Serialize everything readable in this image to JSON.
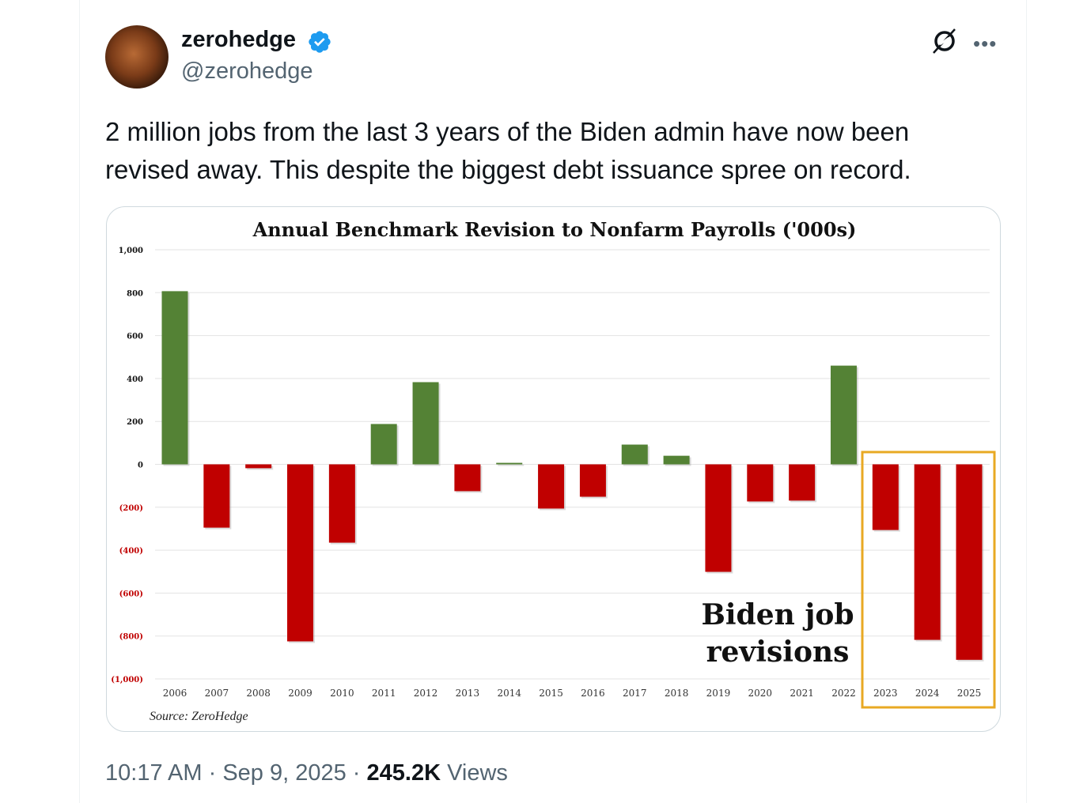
{
  "author": {
    "name": "zerohedge",
    "handle": "@zerohedge",
    "verified": true,
    "avatar_icon": "avatar-image"
  },
  "header_icons": {
    "grok": "grok-icon",
    "more": "more-options-icon"
  },
  "tweet": {
    "text": "2 million jobs from the last 3 years of the Biden admin have now been revised away. This despite the biggest debt issuance spree on record."
  },
  "meta": {
    "time": "10:17 AM",
    "separator": " · ",
    "date": "Sep 9, 2025",
    "views_count": "245.2K",
    "views_label": " Views"
  },
  "chart_data": {
    "type": "bar",
    "title": "Annual Benchmark Revision to Nonfarm Payrolls ('000s)",
    "categories": [
      "2006",
      "2007",
      "2008",
      "2009",
      "2010",
      "2011",
      "2012",
      "2013",
      "2014",
      "2015",
      "2016",
      "2017",
      "2018",
      "2019",
      "2020",
      "2021",
      "2022",
      "2023",
      "2024",
      "2025"
    ],
    "values": [
      807,
      -295,
      -18,
      -825,
      -365,
      188,
      383,
      -125,
      7,
      -206,
      -151,
      92,
      40,
      -501,
      -173,
      -169,
      460,
      -306,
      -818,
      -911
    ],
    "ylim": [
      -1000,
      1000
    ],
    "yticks": [
      "1,000",
      "800",
      "600",
      "400",
      "200",
      "0",
      "(200)",
      "(400)",
      "(600)",
      "(800)",
      "(1,000)"
    ],
    "grid": true,
    "colors": {
      "positive": "#548235",
      "negative": "#c00000",
      "negative_tick": "#c00000",
      "highlight": "#e8a923"
    },
    "annotation": {
      "lines": [
        "Biden job",
        "revisions"
      ],
      "highlighted_categories": [
        "2023",
        "2024",
        "2025"
      ]
    },
    "source": "Source: ZeroHedge"
  }
}
